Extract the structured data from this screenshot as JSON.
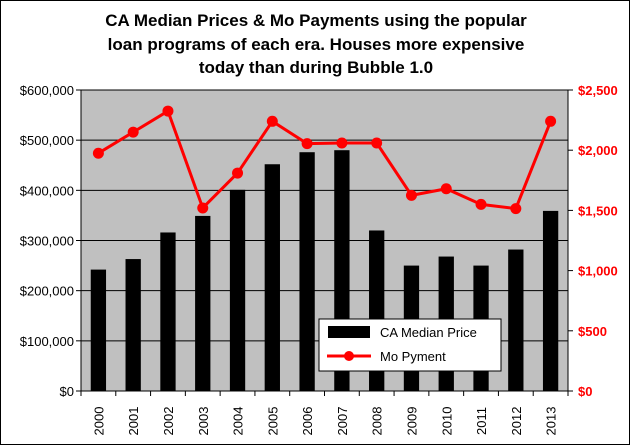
{
  "chart_data": {
    "type": "bar",
    "title_lines": [
      "CA Median Prices & Mo Payments using the popular",
      "loan programs of each era.  Houses more expensive",
      "today than during Bubble 1.0"
    ],
    "categories": [
      "2000",
      "2001",
      "2002",
      "2003",
      "2004",
      "2005",
      "2006",
      "2007",
      "2008",
      "2009",
      "2010",
      "2011",
      "2012",
      "2013"
    ],
    "series": [
      {
        "name": "CA Median Price",
        "type": "bar",
        "axis": "left",
        "color": "#000000",
        "values": [
          242000,
          263000,
          316000,
          349000,
          401000,
          452000,
          476000,
          480000,
          320000,
          250000,
          268000,
          250000,
          282000,
          359000
        ]
      },
      {
        "name": "Mo Pyment",
        "type": "line",
        "axis": "right",
        "color": "#ff0000",
        "values": [
          1975,
          2150,
          2325,
          1520,
          1810,
          2240,
          2055,
          2060,
          2060,
          1625,
          1680,
          1550,
          1515,
          2240
        ]
      }
    ],
    "left_axis": {
      "ylim": [
        0,
        600000
      ],
      "ticks": [
        0,
        100000,
        200000,
        300000,
        400000,
        500000,
        600000
      ],
      "tick_labels": [
        "$0",
        "$100,000",
        "$200,000",
        "$300,000",
        "$400,000",
        "$500,000",
        "$600,000"
      ]
    },
    "right_axis": {
      "ylim": [
        0,
        2500
      ],
      "ticks": [
        0,
        500,
        1000,
        1500,
        2000,
        2500
      ],
      "tick_labels": [
        "$0",
        "$500",
        "$1,000",
        "$1,500",
        "$2,000",
        "$2,500"
      ],
      "color": "#ff0000"
    },
    "plot_background": "#c0c0c0",
    "grid": "horizontal",
    "legend_position": "bottom-right"
  }
}
